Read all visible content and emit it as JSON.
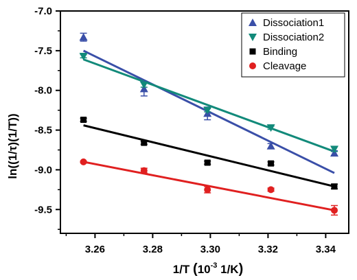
{
  "chart_data": {
    "type": "scatter",
    "xlabel_parts": [
      "1/T ",
      "(",
      "10",
      "-3",
      " 1/K",
      ")"
    ],
    "ylabel": "ln((1/τ)(1/T))",
    "xlim": [
      3.248,
      3.348
    ],
    "ylim": [
      -9.8,
      -7.0
    ],
    "x_ticks": [
      3.26,
      3.28,
      3.3,
      3.32,
      3.34
    ],
    "x_tick_labels": [
      "3.26",
      "3.28",
      "3.30",
      "3.32",
      "3.34"
    ],
    "y_ticks": [
      -7.0,
      -7.5,
      -8.0,
      -8.5,
      -9.0,
      -9.5
    ],
    "y_tick_labels": [
      "-7.0",
      "-7.5",
      "-8.0",
      "-8.5",
      "-9.0",
      "-9.5"
    ],
    "grid": false,
    "legend_position": "top-right",
    "series": [
      {
        "name": "Dissociation1",
        "color": "#3a4fa8",
        "marker": "triangle-up",
        "x": [
          3.256,
          3.277,
          3.299,
          3.321,
          3.343
        ],
        "y": [
          -7.33,
          -7.98,
          -8.29,
          -8.7,
          -8.79
        ],
        "err": [
          0.05,
          0.09,
          0.08,
          0.03,
          0.03
        ],
        "fit": {
          "x": [
            3.256,
            3.343
          ],
          "y": [
            -7.5,
            -9.04
          ]
        }
      },
      {
        "name": "Dissociation2",
        "color": "#128a7a",
        "marker": "triangle-down",
        "x": [
          3.256,
          3.277,
          3.299,
          3.321,
          3.343
        ],
        "y": [
          -7.57,
          -7.93,
          -8.25,
          -8.47,
          -8.74
        ],
        "err": [
          0.02,
          0.03,
          0.02,
          0.02,
          0.03
        ],
        "fit": {
          "x": [
            3.256,
            3.343
          ],
          "y": [
            -7.61,
            -8.77
          ]
        }
      },
      {
        "name": "Binding",
        "color": "#000000",
        "marker": "square",
        "x": [
          3.256,
          3.277,
          3.299,
          3.321,
          3.343
        ],
        "y": [
          -8.37,
          -8.66,
          -8.91,
          -8.92,
          -9.21
        ],
        "err": [
          0.02,
          0.02,
          0.02,
          0.02,
          0.03
        ],
        "fit": {
          "x": [
            3.256,
            3.343
          ],
          "y": [
            -8.44,
            -9.21
          ]
        }
      },
      {
        "name": "Cleavage",
        "color": "#e02020",
        "marker": "circle",
        "x": [
          3.256,
          3.277,
          3.299,
          3.321,
          3.343
        ],
        "y": [
          -8.9,
          -9.01,
          -9.25,
          -9.25,
          -9.51
        ],
        "err": [
          0.01,
          0.03,
          0.04,
          0.02,
          0.06
        ],
        "fit": {
          "x": [
            3.256,
            3.343
          ],
          "y": [
            -8.9,
            -9.51
          ]
        }
      }
    ]
  }
}
